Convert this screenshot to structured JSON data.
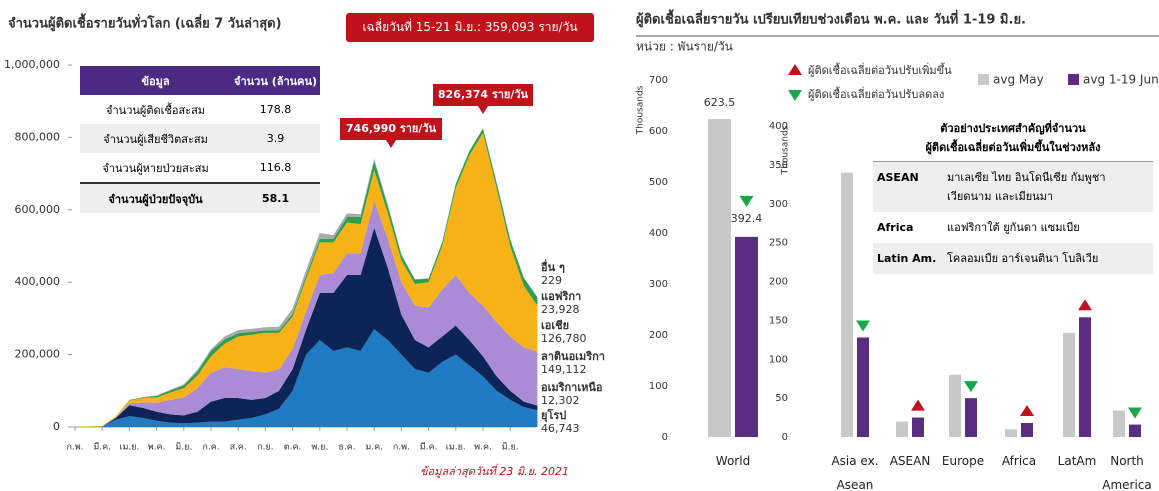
{
  "chart_data": [
    {
      "type": "stacked_area",
      "title": "จำนวนผู้ติดเชื้อรายวันทั่วโลก (เฉลี่ย 7 วันล่าสุด)",
      "annotations": [
        "เฉลี่ยวันที่ 15-21 มิ.ย.: 359,093 ราย/วัน",
        "746,990 ราย/วัน",
        "826,374 ราย/วัน"
      ],
      "note": "ข้อมูลล่าสุดวันที่ 23 มิ.ย. 2021",
      "categories": [
        "ก.พ.",
        null,
        "มี.ค.",
        null,
        "เม.ย.",
        null,
        "พ.ค.",
        null,
        "มิ.ย.",
        null,
        "ก.ค.",
        null,
        "ส.ค.",
        null,
        "ก.ย.",
        null,
        "ต.ค.",
        null,
        "พ.ย.",
        null,
        "ธ.ค.",
        null,
        "ม.ค.",
        null,
        "ก.พ.",
        null,
        "มี.ค.",
        null,
        "เม.ย.",
        null,
        "พ.ค.",
        null,
        "มิ.ย.",
        null,
        null
      ],
      "ylim": [
        0,
        1000000
      ],
      "yticks": [
        0,
        {
          "value": 200000,
          "label": "200,000"
        },
        {
          "value": 400000,
          "label": "400,000"
        },
        {
          "value": 600000,
          "label": "600,000"
        },
        {
          "value": 800000,
          "label": "800,000"
        },
        {
          "value": 1000000,
          "label": "1,000,000"
        }
      ],
      "series": [
        {
          "name": "ยุโรป",
          "color": "#1f7bc4",
          "end_label": "46,743",
          "values": [
            0,
            0,
            1000,
            20000,
            30000,
            25000,
            17000,
            12000,
            10000,
            12000,
            15000,
            15000,
            20000,
            25000,
            35000,
            50000,
            100000,
            200000,
            240000,
            210000,
            220000,
            210000,
            270000,
            240000,
            200000,
            160000,
            150000,
            180000,
            200000,
            170000,
            140000,
            100000,
            75000,
            55000,
            46743
          ]
        },
        {
          "name": "อเมริกาเหนือ",
          "color": "#0d2457",
          "end_label": "12,302",
          "values": [
            0,
            0,
            0,
            5000,
            30000,
            28000,
            25000,
            23000,
            22000,
            30000,
            55000,
            65000,
            60000,
            50000,
            45000,
            50000,
            60000,
            70000,
            130000,
            160000,
            200000,
            210000,
            280000,
            200000,
            110000,
            80000,
            70000,
            70000,
            80000,
            70000,
            55000,
            40000,
            25000,
            15000,
            12302
          ]
        },
        {
          "name": "ลาตินอเมริกา",
          "color": "#a98bd6",
          "end_label": "149,112",
          "values": [
            0,
            0,
            0,
            1000,
            5000,
            15000,
            25000,
            40000,
            50000,
            65000,
            80000,
            85000,
            80000,
            80000,
            70000,
            60000,
            55000,
            50000,
            50000,
            55000,
            60000,
            60000,
            75000,
            80000,
            90000,
            95000,
            110000,
            130000,
            140000,
            130000,
            140000,
            150000,
            150000,
            150000,
            149112
          ]
        },
        {
          "name": "เอเชีย",
          "color": "#f7b217",
          "end_label": "126,780",
          "values": [
            0,
            2000,
            2000,
            3000,
            8000,
            12000,
            15000,
            20000,
            25000,
            35000,
            45000,
            65000,
            90000,
            100000,
            110000,
            100000,
            90000,
            90000,
            90000,
            85000,
            85000,
            80000,
            85000,
            70000,
            60000,
            60000,
            70000,
            120000,
            240000,
            380000,
            478000,
            370000,
            250000,
            170000,
            126780
          ]
        },
        {
          "name": "แอฟริกา",
          "color": "#2e9e4f",
          "end_label": "23,928",
          "values": [
            0,
            0,
            0,
            500,
            1500,
            2000,
            4000,
            6000,
            8000,
            12000,
            15000,
            12000,
            9000,
            8000,
            7000,
            7000,
            8000,
            9000,
            10000,
            10000,
            15000,
            20000,
            25000,
            20000,
            15000,
            12000,
            10000,
            10000,
            12000,
            12000,
            12000,
            15000,
            18000,
            22000,
            23928
          ]
        },
        {
          "name": "อื่น ๆ",
          "color": "#aaaaaa",
          "values": [
            0,
            0,
            0,
            0,
            500,
            1000,
            1000,
            2000,
            3000,
            4000,
            5000,
            8000,
            9000,
            8000,
            9000,
            10000,
            14000,
            15000,
            16000,
            10000,
            10000,
            8000,
            6000,
            4000,
            2000,
            1000,
            1000,
            1000,
            1000,
            1000,
            1000,
            500,
            300,
            300,
            229
          ]
        }
      ],
      "table": {
        "header": [
          "ข้อมูล",
          "จำนวน (ล้านคน)"
        ],
        "rows": [
          [
            "จำนวนผู้ติดเชื้อสะสม",
            178.8
          ],
          [
            "จำนวนผู้เสียชีวิตสะสม",
            3.9
          ],
          [
            "จำนวนผู้หายป่วยสะสม",
            116.8
          ],
          [
            "จำนวนผู้ป่วยปัจจุบัน",
            58.1
          ]
        ]
      }
    },
    {
      "type": "bar",
      "title": "ผู้ติดเชื้อเฉลี่ยรายวัน เปรียบเทียบช่วงเดือน พ.ค. และ วันที่ 1-19 มิ.ย.",
      "subtitle": "หน่วย : พันราย/วัน",
      "ylabel": "Thousands",
      "categories": [
        "World"
      ],
      "ylim": [
        0,
        700
      ],
      "yticks": [
        0,
        100,
        200,
        300,
        400,
        500,
        600,
        700
      ],
      "show_values": true,
      "series": [
        {
          "color": "#c8c8c8",
          "values": [
            623.5
          ]
        },
        {
          "color": "#5b2d82",
          "values": [
            392.4
          ]
        }
      ]
    },
    {
      "type": "bar",
      "ylabel": "Thousands",
      "categories": [
        "Asia ex. Asean",
        "ASEAN",
        "Europe",
        "Africa",
        "LatAm",
        "North America"
      ],
      "ylim": [
        0,
        400
      ],
      "yticks": [
        0,
        50,
        100,
        150,
        200,
        250,
        300,
        350,
        400
      ],
      "series": [
        {
          "name": "avg May",
          "color": "#c8c8c8",
          "values": [
            340,
            20,
            80,
            10,
            134,
            34
          ]
        },
        {
          "name": "avg 1-19 Jun",
          "color": "#5b2d82",
          "values": [
            128,
            25,
            50,
            18,
            154,
            16
          ]
        }
      ],
      "trend_legend": {
        "up": "ผู้ติดเชื้อเฉลี่ยต่อวันปรับเพิ่มขึ้น",
        "down": "ผู้ติดเชื้อเฉลี่ยต่อวันปรับลดลง"
      },
      "table": {
        "title": [
          "ตัวอย่างประเทศสำคัญที่จำนวน",
          "ผู้ติดเชื้อเฉลี่ยต่อวันเพิ่มขึ้นในช่วงหลัง"
        ],
        "rows": [
          [
            "ASEAN",
            "มาเลเซีย ไทย อินโดนีเซีย กัมพูชา เวียดนาม และเมียนมา"
          ],
          [
            "Africa",
            "แอฟริกาใต้ ยูกันดา แซมเบีย"
          ],
          [
            "Latin Am.",
            "โคลอมเบีย อาร์เจนตินา โบลิเวีย"
          ]
        ]
      }
    }
  ]
}
